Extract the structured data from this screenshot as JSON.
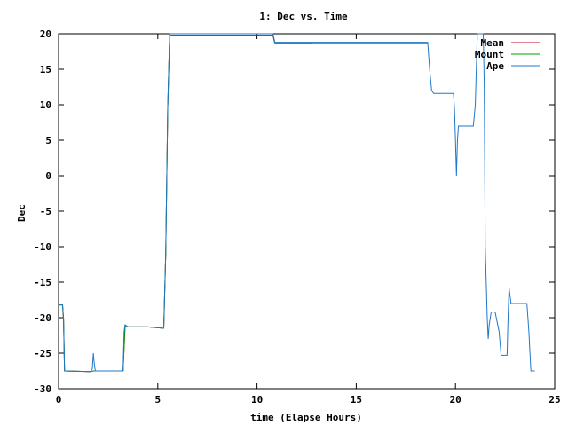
{
  "chart_data": {
    "type": "line",
    "title": "1: Dec vs. Time",
    "xlabel": "time (Elapse Hours)",
    "ylabel": "Dec",
    "xlim": [
      0,
      25
    ],
    "ylim": [
      -30,
      20
    ],
    "xticks": [
      0,
      5,
      10,
      15,
      20,
      25
    ],
    "yticks": [
      20,
      15,
      10,
      5,
      0,
      -5,
      -10,
      -15,
      -20,
      -25,
      -30
    ],
    "grid": false,
    "legend_position": "top-right",
    "series": [
      {
        "name": "Mean",
        "color": "#d0002a",
        "points": [
          [
            0,
            -18.2
          ],
          [
            0.2,
            -18.2
          ],
          [
            0.25,
            -20.3
          ],
          [
            0.3,
            -27.5
          ],
          [
            1.6,
            -27.6
          ],
          [
            1.75,
            -27.5
          ],
          [
            1.85,
            -27.5
          ],
          [
            3.25,
            -27.5
          ],
          [
            3.35,
            -21.2
          ],
          [
            3.5,
            -21.3
          ],
          [
            4.5,
            -21.3
          ],
          [
            5.3,
            -21.5
          ],
          [
            5.4,
            -11
          ],
          [
            5.5,
            9.5
          ],
          [
            5.6,
            19.8
          ],
          [
            10.8,
            19.8
          ],
          [
            10.9,
            18.6
          ],
          [
            12.8,
            18.6
          ]
        ]
      },
      {
        "name": "Mount",
        "color": "#00a000",
        "points": [
          [
            0,
            -18.2
          ],
          [
            0.2,
            -18.2
          ],
          [
            0.25,
            -20.3
          ],
          [
            0.3,
            -27.5
          ],
          [
            1.6,
            -27.6
          ],
          [
            1.75,
            -27.5
          ],
          [
            1.85,
            -27.5
          ],
          [
            3.25,
            -27.5
          ],
          [
            3.35,
            -21.2
          ],
          [
            3.5,
            -21.3
          ],
          [
            4.5,
            -21.3
          ],
          [
            5.3,
            -21.5
          ],
          [
            5.4,
            -11
          ],
          [
            5.5,
            9.5
          ],
          [
            5.6,
            20.0
          ],
          [
            10.8,
            20.0
          ],
          [
            10.9,
            18.6
          ],
          [
            18.6,
            18.6
          ]
        ]
      },
      {
        "name": "Ape",
        "color": "#1e78c8",
        "points": [
          [
            0,
            -18.2
          ],
          [
            0.2,
            -18.2
          ],
          [
            0.25,
            -20.0
          ],
          [
            0.3,
            -27.5
          ],
          [
            1.6,
            -27.6
          ],
          [
            1.7,
            -27.2
          ],
          [
            1.75,
            -25.0
          ],
          [
            1.8,
            -26.5
          ],
          [
            1.85,
            -27.5
          ],
          [
            3.25,
            -27.5
          ],
          [
            3.3,
            -22.0
          ],
          [
            3.35,
            -21.0
          ],
          [
            3.5,
            -21.3
          ],
          [
            4.5,
            -21.3
          ],
          [
            5.3,
            -21.5
          ],
          [
            5.4,
            -11
          ],
          [
            5.5,
            9.5
          ],
          [
            5.6,
            20.0
          ],
          [
            10.8,
            20.0
          ],
          [
            10.9,
            18.8
          ],
          [
            18.6,
            18.8
          ],
          [
            18.7,
            15.0
          ],
          [
            18.8,
            12.0
          ],
          [
            18.9,
            11.6
          ],
          [
            19.9,
            11.6
          ],
          [
            19.95,
            9.5
          ],
          [
            20.0,
            5.0
          ],
          [
            20.05,
            0.0
          ],
          [
            20.1,
            5.0
          ],
          [
            20.15,
            7.0
          ],
          [
            20.9,
            7.0
          ],
          [
            21.0,
            10.0
          ],
          [
            21.1,
            20.0
          ],
          [
            21.4,
            20.0
          ],
          [
            21.45,
            13.0
          ],
          [
            21.5,
            -10.0
          ],
          [
            21.6,
            -20.0
          ],
          [
            21.65,
            -23.0
          ],
          [
            21.7,
            -21.0
          ],
          [
            21.8,
            -19.2
          ],
          [
            22.0,
            -19.2
          ],
          [
            22.2,
            -22.0
          ],
          [
            22.3,
            -25.3
          ],
          [
            22.6,
            -25.3
          ],
          [
            22.65,
            -20.0
          ],
          [
            22.7,
            -15.8
          ],
          [
            22.8,
            -18.0
          ],
          [
            23.6,
            -18.0
          ],
          [
            23.7,
            -22.0
          ],
          [
            23.8,
            -27.5
          ],
          [
            24.0,
            -27.5
          ]
        ]
      }
    ]
  }
}
